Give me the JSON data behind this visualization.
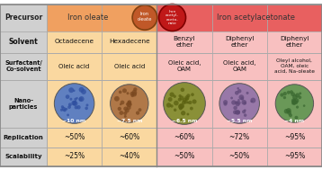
{
  "left_col_bg": "#d0d0d0",
  "iron_oleate_header_bg": "#f0a060",
  "iron_acac_header_bg": "#e86060",
  "iron_oleate_body_bg": "#fad8a0",
  "iron_acac_body_bg": "#f8c0c0",
  "row_labels": [
    "Precursor",
    "Solvent",
    "Surfactant/\nCo-solvent",
    "Nano-\nparticles",
    "Replication",
    "Scalability"
  ],
  "col_headers": [
    "Iron oleate",
    "Iron acetylacetonate"
  ],
  "solvent_vals": [
    "Octadecene",
    "Hexadecene",
    "Benzyl\nether",
    "Diphenyl\nether",
    "Diphenyl\nether"
  ],
  "surfactant_vals": [
    "Oleic acid",
    "Oleic acid",
    "Oleic acid,\nOAM",
    "Oleic acid,\nOAM",
    "Oleyl alcohol,\nOAM, oleic\nacid, Na-oleate"
  ],
  "np_sizes": [
    "~10 nm",
    "~7.5 nm",
    "~6.5 nm",
    "~5.5 nm",
    "~4 nm"
  ],
  "replication_vals": [
    "~50%",
    "~60%",
    "~60%",
    "~72%",
    "~95%"
  ],
  "scalability_vals": [
    "~25%",
    "~40%",
    "~50%",
    "~50%",
    "~95%"
  ],
  "circle_colors": [
    "#6080c0",
    "#b07848",
    "#8a9038",
    "#9878a8",
    "#6a9858"
  ],
  "circle_dot_colors": [
    "#3050a0",
    "#7a4820",
    "#5a6010",
    "#604878",
    "#3a6830"
  ],
  "iron_oleate_circle_color": "#c05828",
  "iron_oleate_circle_border": "#804010",
  "iron_acac_circle_color": "#c01818",
  "iron_acac_circle_border": "#800000",
  "grid_color": "#aaaaaa",
  "text_color": "#111111"
}
